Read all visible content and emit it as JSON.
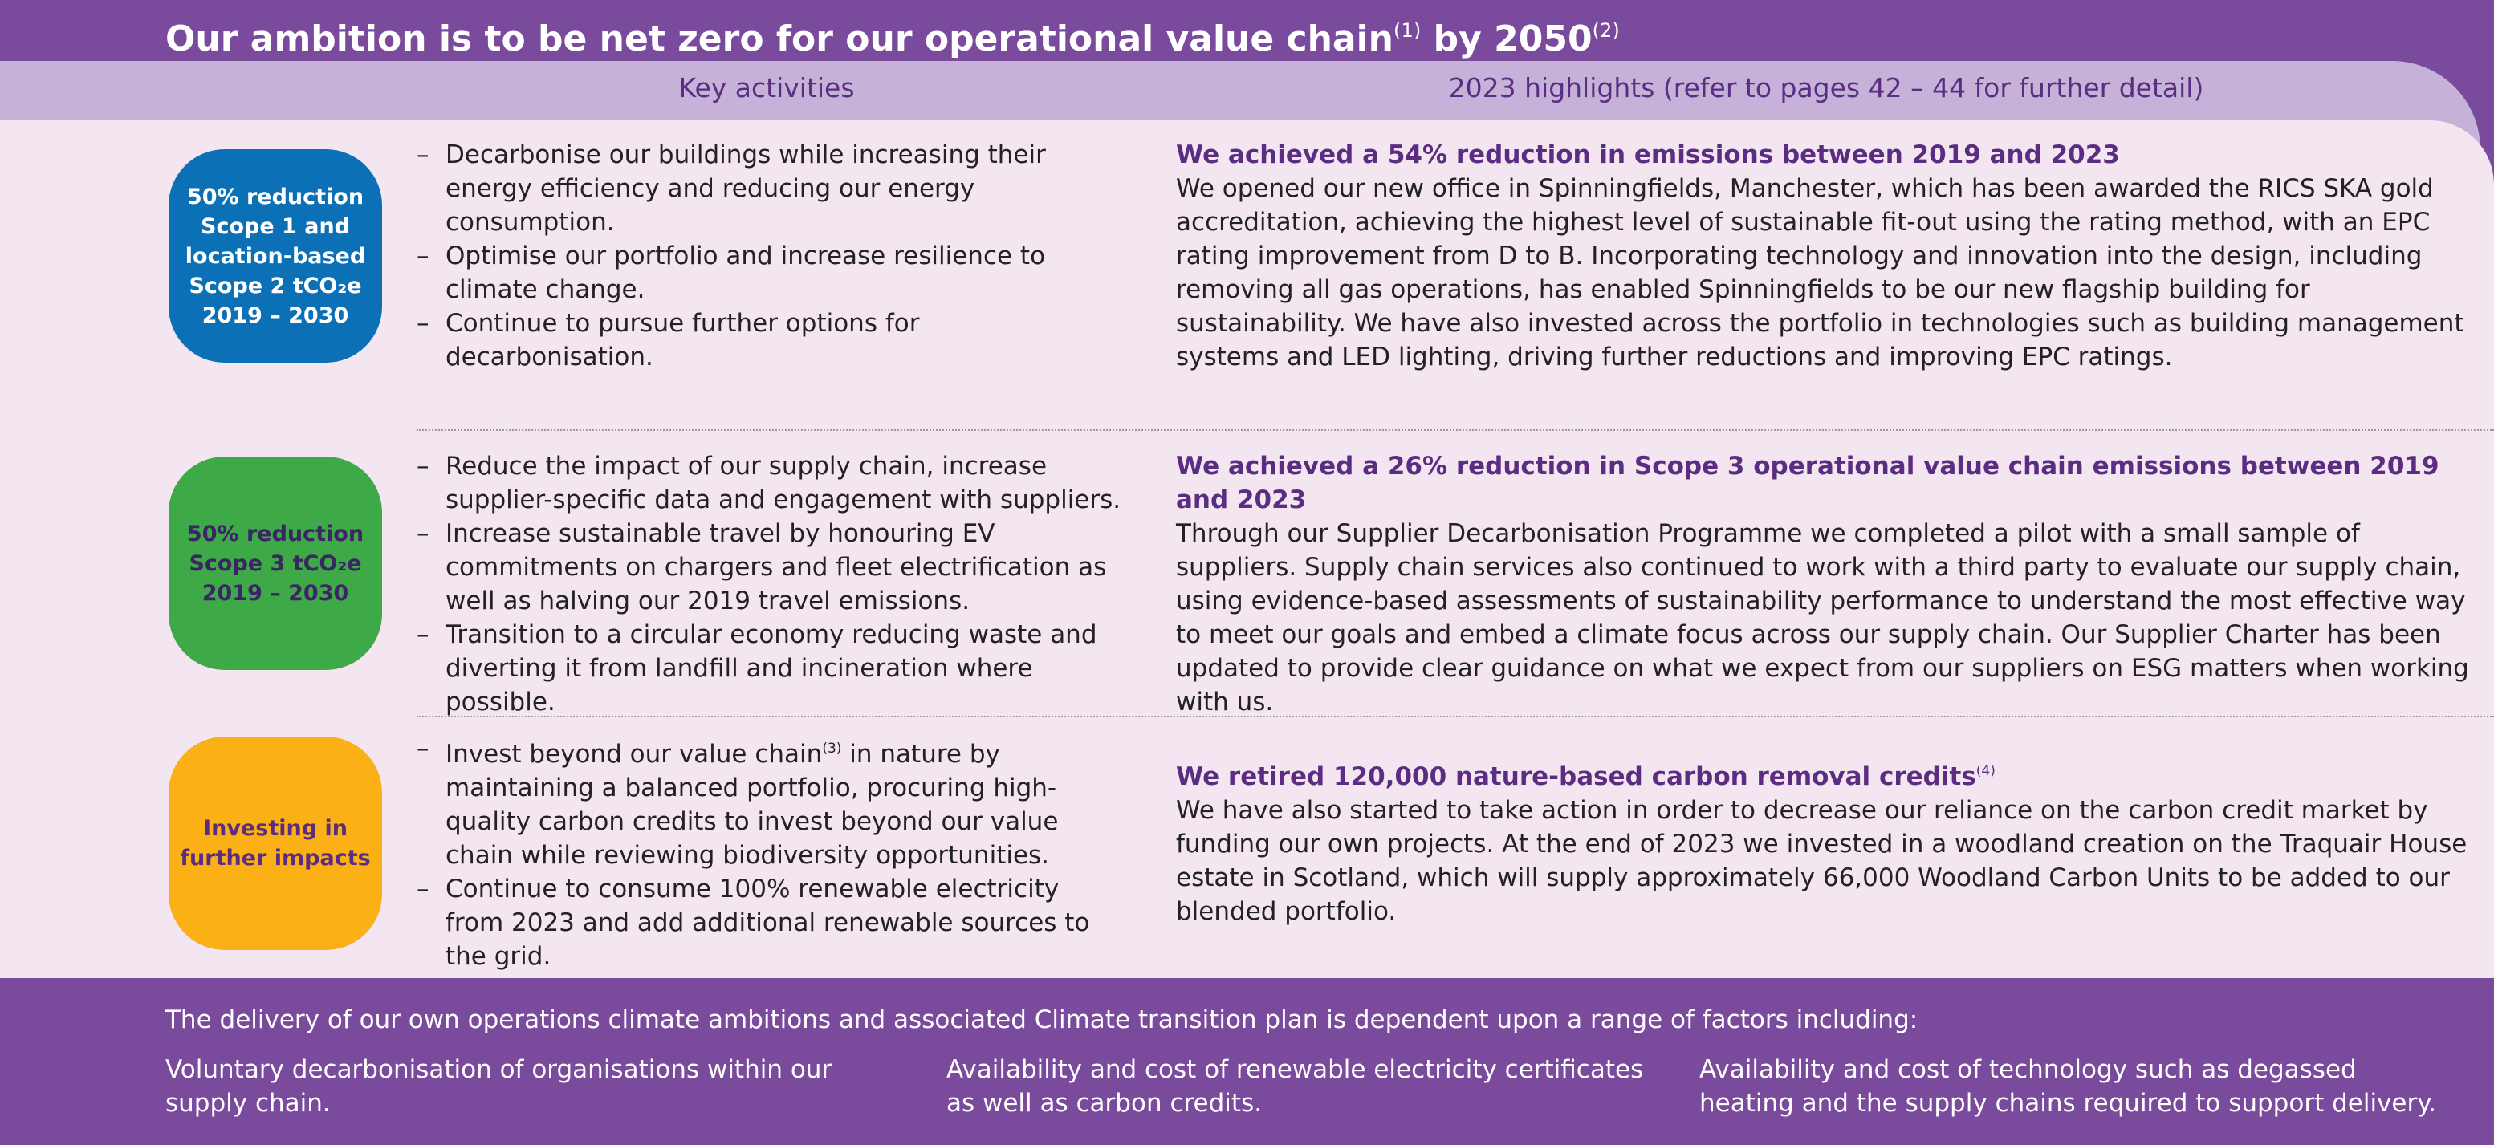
{
  "header": {
    "title": "Our ambition is to be net zero for our operational value chain",
    "title_sup1": "(1)",
    "title_mid": " by 2050",
    "title_sup2": "(2)"
  },
  "columns": {
    "activities": "Key activities",
    "highlights": "2023 highlights (refer to pages 42 – 44 for further detail)"
  },
  "rows": [
    {
      "badge": [
        "50% reduction",
        "Scope 1 and",
        "location-based",
        "Scope 2 tCO₂e",
        "2019 – 2030"
      ],
      "bullets": [
        "Decarbonise our buildings while increasing their energy efficiency and reducing our energy consumption.",
        "Optimise our portfolio and increase resilience to climate change.",
        "Continue to pursue further options for decarbonisation."
      ],
      "heading": "We achieved a 54% reduction in emissions between 2019 and 2023",
      "body": "We opened our new office in Spinningfields, Manchester, which has been awarded the RICS SKA gold accreditation, achieving the highest level of sustainable fit-out using the rating method, with an EPC rating improvement from D to B. Incorporating technology and innovation into the design, including removing all gas operations, has enabled Spinningfields to be our new flagship building for sustainability. We have also invested across the portfolio in technologies such as building management systems and LED lighting, driving further reductions and improving EPC ratings."
    },
    {
      "badge": [
        "50% reduction",
        "Scope 3 tCO₂e",
        "2019 – 2030"
      ],
      "bullets": [
        "Reduce the impact of our supply chain, increase supplier-specific data and engagement with suppliers.",
        "Increase sustainable travel by honouring EV commitments on chargers and fleet electrification as well as halving our 2019 travel emissions.",
        "Transition to a circular economy reducing waste and diverting it from landfill and incineration where possible."
      ],
      "heading": "We achieved a 26% reduction in Scope 3 operational value chain emissions between 2019 and 2023",
      "body": "Through our Supplier Decarbonisation Programme we completed a pilot with a small sample of suppliers. Supply chain services also continued to work with a third party to evaluate our supply chain, using evidence-based assessments of sustainability performance to understand the most effective way to meet our goals and embed a climate focus across our supply chain. Our Supplier Charter has been updated to provide clear guidance on what we expect from our suppliers on ESG matters when working with us."
    },
    {
      "badge": [
        "Investing in",
        "further impacts"
      ],
      "bullets": [
        {
          "before": "Invest beyond our value chain",
          "sup": "(3)",
          "after": " in nature by maintaining a balanced portfolio, procuring high-quality carbon credits to invest beyond our value chain while reviewing biodiversity opportunities."
        },
        "Continue to consume 100% renewable electricity from 2023 and add additional renewable sources to the grid."
      ],
      "heading": "We retired 120,000 nature-based carbon removal credits",
      "heading_sup": "(4)",
      "body": "We have also started to take action in order to decrease our reliance on the carbon credit market by funding our own projects. At the end of 2023 we invested in a woodland creation on the Traquair House estate in Scotland, which will supply approximately 66,000 Woodland Carbon Units to be added to our blended portfolio."
    }
  ],
  "footer": {
    "intro": "The delivery of our own operations climate ambitions and associated Climate transition plan is dependent upon a range of factors including:",
    "factors": [
      "Voluntary decarbonisation of organisations within our supply chain.",
      "Availability and cost of renewable electricity certificates as well as carbon credits.",
      "Availability and cost of technology such as degassed heating and the supply chains required to support delivery."
    ]
  }
}
